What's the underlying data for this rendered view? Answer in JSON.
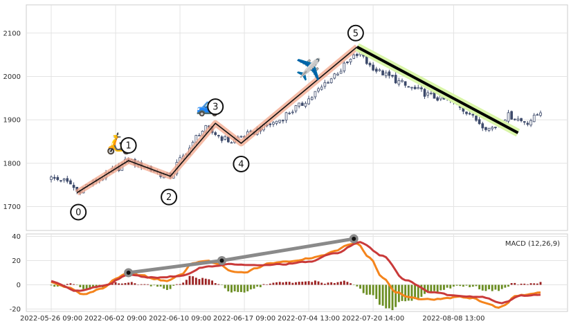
{
  "chart_data": [
    {
      "type": "candlestick",
      "title": "",
      "xlabel": "",
      "ylabel": "",
      "ylim": [
        1645,
        2165
      ],
      "yticks": [
        1700,
        1800,
        1900,
        2000,
        2100
      ],
      "grid": true,
      "up_color": "#ffffff",
      "down_color": "#3d4a6b",
      "anchors": [
        [
          0,
          1765
        ],
        [
          3,
          1762
        ],
        [
          6,
          1752
        ],
        [
          8,
          1735
        ],
        [
          12,
          1752
        ],
        [
          16,
          1768
        ],
        [
          20,
          1786
        ],
        [
          24,
          1806
        ],
        [
          28,
          1796
        ],
        [
          32,
          1782
        ],
        [
          35,
          1772
        ],
        [
          37,
          1770
        ],
        [
          40,
          1808
        ],
        [
          43,
          1835
        ],
        [
          46,
          1870
        ],
        [
          48,
          1880
        ],
        [
          51,
          1868
        ],
        [
          53,
          1858
        ],
        [
          56,
          1850
        ],
        [
          59,
          1862
        ],
        [
          62,
          1868
        ],
        [
          65,
          1880
        ],
        [
          68,
          1890
        ],
        [
          71,
          1900
        ],
        [
          74,
          1918
        ],
        [
          77,
          1932
        ],
        [
          80,
          1948
        ],
        [
          83,
          1968
        ],
        [
          86,
          1990
        ],
        [
          89,
          2010
        ],
        [
          92,
          2030
        ],
        [
          94,
          2045
        ],
        [
          96,
          2055
        ],
        [
          99,
          2025
        ],
        [
          102,
          2010
        ],
        [
          105,
          2000
        ],
        [
          108,
          1988
        ],
        [
          111,
          1975
        ],
        [
          114,
          1968
        ],
        [
          117,
          1958
        ],
        [
          120,
          1950
        ],
        [
          123,
          1945
        ],
        [
          126,
          1935
        ],
        [
          129,
          1920
        ],
        [
          132,
          1900
        ],
        [
          134,
          1888
        ],
        [
          136,
          1880
        ],
        [
          138,
          1885
        ],
        [
          140,
          1900
        ],
        [
          142,
          1910
        ],
        [
          144,
          1905
        ],
        [
          146,
          1898
        ],
        [
          148,
          1895
        ],
        [
          150,
          1905
        ],
        [
          152,
          1920
        ]
      ],
      "zigzag": [
        {
          "label": "0",
          "x": 8,
          "y": 1732
        },
        {
          "label": "1",
          "x": 24,
          "y": 1806
        },
        {
          "label": "2",
          "x": 37,
          "y": 1770
        },
        {
          "label": "3",
          "x": 51,
          "y": 1892
        },
        {
          "label": "4",
          "x": 59,
          "y": 1846
        },
        {
          "label": "5",
          "x": 95,
          "y": 2068
        }
      ],
      "projection": {
        "from": {
          "x": 95,
          "y": 2068
        },
        "to": {
          "x": 145,
          "y": 1870
        }
      },
      "icons": [
        {
          "name": "scooter-icon",
          "glyph": "🛵",
          "x": 21,
          "y": 1830
        },
        {
          "name": "car-icon",
          "glyph": "🚙",
          "x": 49,
          "y": 1918
        },
        {
          "name": "airplane-icon",
          "glyph": "✈️",
          "x": 80,
          "y": 2000
        }
      ]
    },
    {
      "type": "macd",
      "title": "MACD (12,26,9)",
      "ylim": [
        -22,
        42
      ],
      "yticks": [
        -20,
        0,
        20,
        40
      ],
      "grid": true,
      "colors": {
        "macd": "#f4841c",
        "signal": "#c93a3a",
        "hist_up": "#9b2222",
        "hist_down": "#6b8e23"
      },
      "macd_anchors": [
        [
          0,
          2
        ],
        [
          5,
          -2
        ],
        [
          10,
          -8
        ],
        [
          16,
          -3
        ],
        [
          20,
          5
        ],
        [
          24,
          10
        ],
        [
          28,
          8
        ],
        [
          32,
          5
        ],
        [
          36,
          3
        ],
        [
          40,
          8
        ],
        [
          44,
          18
        ],
        [
          48,
          20
        ],
        [
          52,
          17
        ],
        [
          56,
          11
        ],
        [
          60,
          10
        ],
        [
          64,
          14
        ],
        [
          68,
          18
        ],
        [
          72,
          19
        ],
        [
          76,
          20
        ],
        [
          80,
          22
        ],
        [
          84,
          24
        ],
        [
          88,
          28
        ],
        [
          92,
          33
        ],
        [
          95,
          34
        ],
        [
          99,
          22
        ],
        [
          103,
          6
        ],
        [
          107,
          -6
        ],
        [
          111,
          -10
        ],
        [
          115,
          -12
        ],
        [
          119,
          -12
        ],
        [
          123,
          -11
        ],
        [
          127,
          -10
        ],
        [
          131,
          -11
        ],
        [
          135,
          -15
        ],
        [
          139,
          -19
        ],
        [
          141,
          -17
        ],
        [
          144,
          -9
        ],
        [
          148,
          -8
        ],
        [
          152,
          -6
        ]
      ],
      "signal_anchors": [
        [
          0,
          3
        ],
        [
          8,
          -5
        ],
        [
          16,
          -1
        ],
        [
          24,
          8
        ],
        [
          32,
          6
        ],
        [
          40,
          7
        ],
        [
          48,
          15
        ],
        [
          56,
          17
        ],
        [
          64,
          16
        ],
        [
          72,
          17
        ],
        [
          80,
          19
        ],
        [
          88,
          26
        ],
        [
          96,
          35
        ],
        [
          103,
          24
        ],
        [
          110,
          4
        ],
        [
          118,
          -6
        ],
        [
          126,
          -9
        ],
        [
          134,
          -10
        ],
        [
          140,
          -15
        ],
        [
          146,
          -9
        ],
        [
          152,
          -8
        ]
      ],
      "trend": [
        {
          "x": 24,
          "y": 10
        },
        {
          "x": 53,
          "y": 20
        },
        {
          "x": 94,
          "y": 38
        }
      ]
    }
  ],
  "x_axis": {
    "tick_index": [
      0,
      20,
      40,
      60,
      80,
      100,
      125
    ],
    "tick_labels": [
      "2022-05-26 09:00",
      "2022-06-02 09:00",
      "2022-06-10 09:00",
      "2022-06-17 09:00",
      "2022-07-04 13:00",
      "2022-07-20 14:00",
      "2022-08-08 13:00"
    ],
    "n_bars": 153
  }
}
